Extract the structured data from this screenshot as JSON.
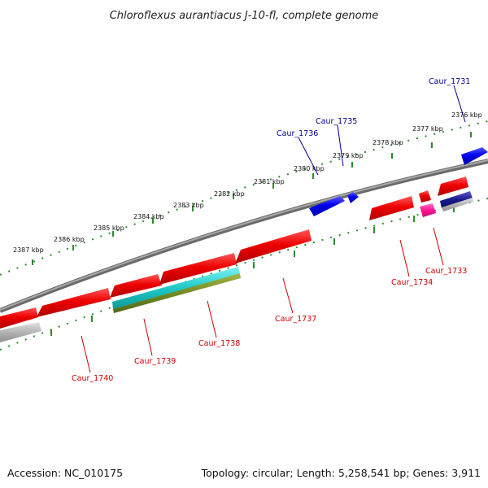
{
  "title": "Chloroflexus aurantiacus J-10-fl, complete genome",
  "footer": {
    "accession": "Accession: NC_010175",
    "summary": "Topology: circular; Length: 5,258,541 bp; Genes: 3,911"
  },
  "colors": {
    "backbone": "#808080",
    "tick_track": "#2e8b2e",
    "forward_label": "#00008b",
    "reverse_label": "#cc0000"
  },
  "kbp_labels": [
    "2387 kbp",
    "2386 kbp",
    "2385 kbp",
    "2384 kbp",
    "2383 kbp",
    "2382 kbp",
    "2381 kbp",
    "2380 kbp",
    "2379 kbp",
    "2378 kbp",
    "2377 kbp",
    "2376 kbp"
  ],
  "gene_labels": [
    {
      "name": "Caur_1731",
      "strand": "forward"
    },
    {
      "name": "Caur_1735",
      "strand": "forward"
    },
    {
      "name": "Caur_1736",
      "strand": "forward"
    },
    {
      "name": "Caur_1733",
      "strand": "reverse"
    },
    {
      "name": "Caur_1734",
      "strand": "reverse"
    },
    {
      "name": "Caur_1737",
      "strand": "reverse"
    },
    {
      "name": "Caur_1738",
      "strand": "reverse"
    },
    {
      "name": "Caur_1739",
      "strand": "reverse"
    },
    {
      "name": "Caur_1740",
      "strand": "reverse"
    }
  ]
}
